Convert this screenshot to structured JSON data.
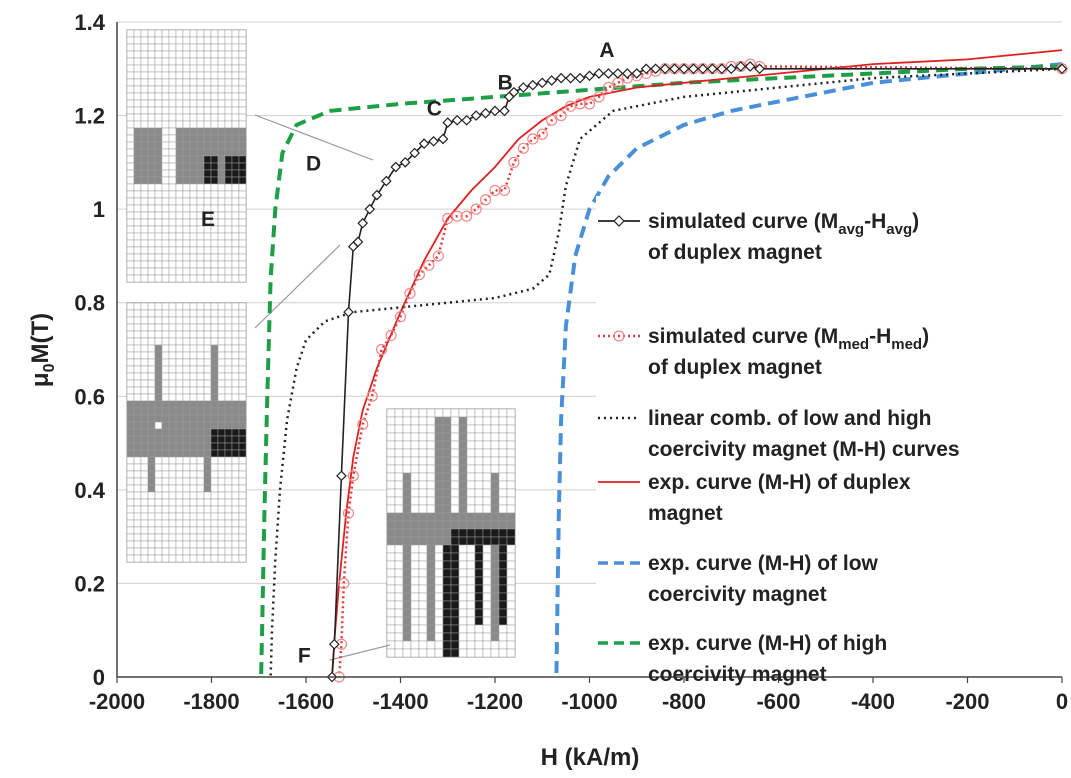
{
  "chart_data": {
    "type": "line",
    "xlabel": "H (kA/m)",
    "ylabel": "μ0M(T)",
    "xlim": [
      -2000,
      0
    ],
    "ylim": [
      0,
      1.4
    ],
    "x_ticks": [
      "-2000",
      "-1800",
      "-1600",
      "-1400",
      "-1200",
      "-1000",
      "-800",
      "-600",
      "-400",
      "-200",
      "0"
    ],
    "y_ticks": [
      "0",
      "0.2",
      "0.4",
      "0.6",
      "0.8",
      "1",
      "1.2",
      "1.4"
    ],
    "grid": "horizontal",
    "legend_position": "right",
    "annotations": [
      {
        "label": "A",
        "x": -980,
        "y": 1.3
      },
      {
        "label": "B",
        "x": -1170,
        "y": 1.23
      },
      {
        "label": "C",
        "x": -1320,
        "y": 1.17
      },
      {
        "label": "D",
        "x": -1440,
        "y": 1.1
      },
      {
        "label": "E",
        "x": -1490,
        "y": 0.93
      },
      {
        "label": "F",
        "x": -1540,
        "y": 0.07
      }
    ],
    "series": [
      {
        "label_lines": [
          "simulated curve (M",
          "avg",
          "-H",
          "avg",
          ")",
          "of duplex magnet"
        ],
        "color": "#222222",
        "style": "solid-diamond",
        "points": [
          [
            0,
            1.3
          ],
          [
            -640,
            1.3
          ],
          [
            -660,
            1.305
          ],
          [
            -680,
            1.305
          ],
          [
            -700,
            1.3
          ],
          [
            -720,
            1.3
          ],
          [
            -740,
            1.3
          ],
          [
            -760,
            1.3
          ],
          [
            -780,
            1.3
          ],
          [
            -800,
            1.3
          ],
          [
            -820,
            1.3
          ],
          [
            -840,
            1.3
          ],
          [
            -860,
            1.3
          ],
          [
            -880,
            1.3
          ],
          [
            -900,
            1.29
          ],
          [
            -920,
            1.29
          ],
          [
            -940,
            1.29
          ],
          [
            -960,
            1.29
          ],
          [
            -980,
            1.29
          ],
          [
            -1000,
            1.285
          ],
          [
            -1020,
            1.28
          ],
          [
            -1040,
            1.28
          ],
          [
            -1060,
            1.28
          ],
          [
            -1080,
            1.275
          ],
          [
            -1100,
            1.27
          ],
          [
            -1120,
            1.265
          ],
          [
            -1140,
            1.26
          ],
          [
            -1160,
            1.25
          ],
          [
            -1170,
            1.24
          ],
          [
            -1180,
            1.21
          ],
          [
            -1200,
            1.21
          ],
          [
            -1220,
            1.205
          ],
          [
            -1240,
            1.2
          ],
          [
            -1260,
            1.19
          ],
          [
            -1280,
            1.19
          ],
          [
            -1300,
            1.185
          ],
          [
            -1310,
            1.15
          ],
          [
            -1330,
            1.145
          ],
          [
            -1350,
            1.14
          ],
          [
            -1370,
            1.12
          ],
          [
            -1390,
            1.1
          ],
          [
            -1410,
            1.09
          ],
          [
            -1430,
            1.06
          ],
          [
            -1450,
            1.03
          ],
          [
            -1465,
            1.0
          ],
          [
            -1480,
            0.97
          ],
          [
            -1490,
            0.93
          ],
          [
            -1500,
            0.92
          ],
          [
            -1510,
            0.78
          ],
          [
            -1525,
            0.43
          ],
          [
            -1540,
            0.07
          ],
          [
            -1545,
            0.0
          ]
        ]
      },
      {
        "label_lines": [
          "simulated curve (M",
          "med",
          "-H",
          "med",
          ")",
          "of duplex magnet"
        ],
        "color": "#e23b3b",
        "style": "dotted-circle",
        "points": [
          [
            0,
            1.3
          ],
          [
            -640,
            1.305
          ],
          [
            -660,
            1.31
          ],
          [
            -680,
            1.305
          ],
          [
            -700,
            1.305
          ],
          [
            -720,
            1.3
          ],
          [
            -740,
            1.3
          ],
          [
            -760,
            1.3
          ],
          [
            -780,
            1.3
          ],
          [
            -800,
            1.3
          ],
          [
            -820,
            1.3
          ],
          [
            -840,
            1.3
          ],
          [
            -860,
            1.295
          ],
          [
            -880,
            1.29
          ],
          [
            -900,
            1.285
          ],
          [
            -920,
            1.28
          ],
          [
            -940,
            1.27
          ],
          [
            -960,
            1.26
          ],
          [
            -980,
            1.24
          ],
          [
            -1000,
            1.225
          ],
          [
            -1020,
            1.225
          ],
          [
            -1040,
            1.22
          ],
          [
            -1060,
            1.2
          ],
          [
            -1080,
            1.19
          ],
          [
            -1100,
            1.16
          ],
          [
            -1120,
            1.15
          ],
          [
            -1140,
            1.13
          ],
          [
            -1160,
            1.1
          ],
          [
            -1180,
            1.04
          ],
          [
            -1200,
            1.04
          ],
          [
            -1220,
            1.02
          ],
          [
            -1240,
            1.0
          ],
          [
            -1260,
            0.985
          ],
          [
            -1280,
            0.985
          ],
          [
            -1300,
            0.98
          ],
          [
            -1320,
            0.9
          ],
          [
            -1340,
            0.88
          ],
          [
            -1360,
            0.86
          ],
          [
            -1380,
            0.82
          ],
          [
            -1400,
            0.77
          ],
          [
            -1420,
            0.73
          ],
          [
            -1440,
            0.7
          ],
          [
            -1460,
            0.6
          ],
          [
            -1480,
            0.54
          ],
          [
            -1500,
            0.43
          ],
          [
            -1510,
            0.35
          ],
          [
            -1520,
            0.2
          ],
          [
            -1525,
            0.07
          ],
          [
            -1530,
            0.0
          ]
        ]
      },
      {
        "label_lines": [
          "linear comb. of low and high",
          "coercivity magnet (M-H) curves"
        ],
        "color": "#222222",
        "style": "dotted",
        "points": [
          [
            0,
            1.3
          ],
          [
            -200,
            1.29
          ],
          [
            -400,
            1.28
          ],
          [
            -600,
            1.26
          ],
          [
            -800,
            1.24
          ],
          [
            -950,
            1.21
          ],
          [
            -1020,
            1.15
          ],
          [
            -1050,
            1.05
          ],
          [
            -1065,
            0.95
          ],
          [
            -1085,
            0.86
          ],
          [
            -1120,
            0.83
          ],
          [
            -1200,
            0.81
          ],
          [
            -1300,
            0.8
          ],
          [
            -1400,
            0.79
          ],
          [
            -1500,
            0.78
          ],
          [
            -1560,
            0.76
          ],
          [
            -1600,
            0.72
          ],
          [
            -1620,
            0.66
          ],
          [
            -1640,
            0.55
          ],
          [
            -1655,
            0.4
          ],
          [
            -1665,
            0.25
          ],
          [
            -1672,
            0.1
          ],
          [
            -1675,
            0.0
          ]
        ]
      },
      {
        "label_lines": [
          "exp. curve (M-H) of duplex",
          "magnet"
        ],
        "color": "#e02020",
        "style": "solid",
        "points": [
          [
            0,
            1.34
          ],
          [
            -200,
            1.32
          ],
          [
            -400,
            1.31
          ],
          [
            -600,
            1.29
          ],
          [
            -800,
            1.27
          ],
          [
            -900,
            1.26
          ],
          [
            -1000,
            1.24
          ],
          [
            -1050,
            1.22
          ],
          [
            -1100,
            1.19
          ],
          [
            -1150,
            1.15
          ],
          [
            -1200,
            1.09
          ],
          [
            -1250,
            1.04
          ],
          [
            -1300,
            0.98
          ],
          [
            -1350,
            0.89
          ],
          [
            -1400,
            0.78
          ],
          [
            -1450,
            0.66
          ],
          [
            -1480,
            0.57
          ],
          [
            -1500,
            0.47
          ],
          [
            -1515,
            0.35
          ],
          [
            -1530,
            0.2
          ],
          [
            -1540,
            0.08
          ],
          [
            -1545,
            0.0
          ]
        ]
      },
      {
        "label_lines": [
          "exp. curve (M-H) of low",
          "coercivity magnet"
        ],
        "color": "#4a90d9",
        "style": "dashed",
        "points": [
          [
            0,
            1.31
          ],
          [
            -100,
            1.3
          ],
          [
            -200,
            1.29
          ],
          [
            -300,
            1.28
          ],
          [
            -400,
            1.27
          ],
          [
            -500,
            1.25
          ],
          [
            -600,
            1.23
          ],
          [
            -700,
            1.21
          ],
          [
            -800,
            1.18
          ],
          [
            -900,
            1.13
          ],
          [
            -960,
            1.07
          ],
          [
            -1000,
            1.0
          ],
          [
            -1030,
            0.9
          ],
          [
            -1050,
            0.75
          ],
          [
            -1060,
            0.55
          ],
          [
            -1065,
            0.35
          ],
          [
            -1068,
            0.15
          ],
          [
            -1070,
            0.0
          ]
        ]
      },
      {
        "label_lines": [
          "exp. curve (M-H) of high",
          "coercivity magnet"
        ],
        "color": "#1e9e46",
        "style": "dashed",
        "points": [
          [
            0,
            1.305
          ],
          [
            -200,
            1.3
          ],
          [
            -400,
            1.29
          ],
          [
            -600,
            1.28
          ],
          [
            -800,
            1.27
          ],
          [
            -1000,
            1.255
          ],
          [
            -1200,
            1.24
          ],
          [
            -1400,
            1.225
          ],
          [
            -1550,
            1.21
          ],
          [
            -1620,
            1.18
          ],
          [
            -1650,
            1.12
          ],
          [
            -1665,
            1.0
          ],
          [
            -1675,
            0.85
          ],
          [
            -1682,
            0.6
          ],
          [
            -1688,
            0.35
          ],
          [
            -1693,
            0.1
          ],
          [
            -1695,
            0.0
          ]
        ]
      }
    ]
  }
}
